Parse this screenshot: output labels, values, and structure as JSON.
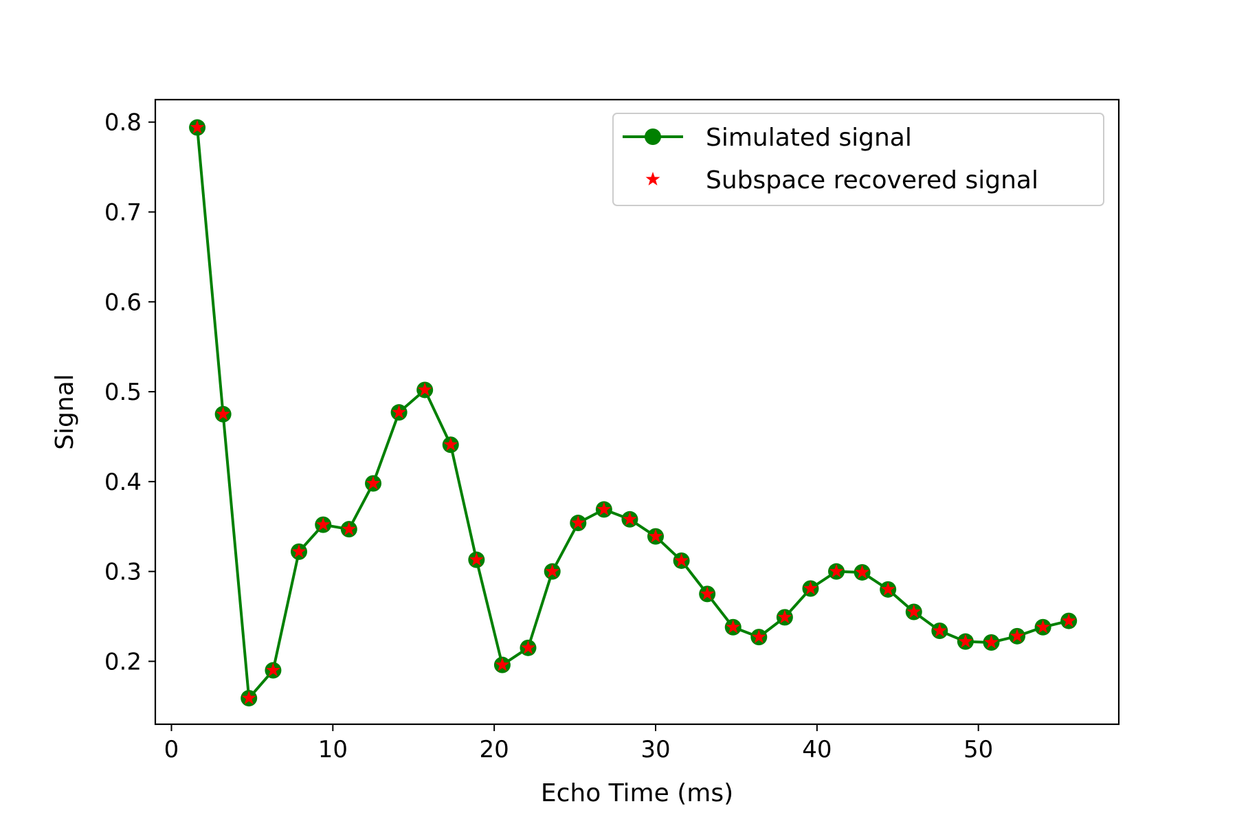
{
  "chart_data": {
    "type": "line",
    "xlabel": "Echo Time (ms)",
    "ylabel": "Signal",
    "xlim": [
      -1.0,
      58.7
    ],
    "ylim": [
      0.13,
      0.825
    ],
    "x_ticks": [
      0,
      10,
      20,
      30,
      40,
      50
    ],
    "x_tick_labels": [
      "0",
      "10",
      "20",
      "30",
      "40",
      "50"
    ],
    "y_ticks": [
      0.2,
      0.3,
      0.4,
      0.5,
      0.6,
      0.7,
      0.8
    ],
    "y_tick_labels": [
      "0.2",
      "0.3",
      "0.4",
      "0.5",
      "0.6",
      "0.7",
      "0.8"
    ],
    "grid": false,
    "legend_position": "top-right",
    "x": [
      1.6,
      3.2,
      4.8,
      6.3,
      7.9,
      9.4,
      11.0,
      12.5,
      14.1,
      15.7,
      17.3,
      18.9,
      20.5,
      22.1,
      23.6,
      25.2,
      26.8,
      28.4,
      30.0,
      31.6,
      33.2,
      34.8,
      36.4,
      38.0,
      39.6,
      41.2,
      42.8,
      44.4,
      46.0,
      47.6,
      49.2,
      50.8,
      52.4,
      54.0,
      55.6
    ],
    "series": [
      {
        "name": "Simulated signal",
        "color": "#008000",
        "marker": "circle",
        "line": true,
        "values": [
          0.794,
          0.475,
          0.159,
          0.19,
          0.322,
          0.352,
          0.347,
          0.398,
          0.477,
          0.502,
          0.441,
          0.313,
          0.196,
          0.215,
          0.3,
          0.354,
          0.369,
          0.358,
          0.339,
          0.312,
          0.275,
          0.238,
          0.227,
          0.249,
          0.281,
          0.3,
          0.299,
          0.28,
          0.255,
          0.234,
          0.222,
          0.221,
          0.228,
          0.238,
          0.245
        ]
      },
      {
        "name": "Subspace recovered signal",
        "color": "#ff0000",
        "marker": "star",
        "line": false,
        "values": [
          0.794,
          0.475,
          0.159,
          0.19,
          0.322,
          0.352,
          0.347,
          0.398,
          0.477,
          0.502,
          0.441,
          0.313,
          0.196,
          0.215,
          0.3,
          0.354,
          0.369,
          0.358,
          0.339,
          0.312,
          0.275,
          0.238,
          0.227,
          0.249,
          0.281,
          0.3,
          0.299,
          0.28,
          0.255,
          0.234,
          0.222,
          0.221,
          0.228,
          0.238,
          0.245
        ]
      }
    ]
  }
}
